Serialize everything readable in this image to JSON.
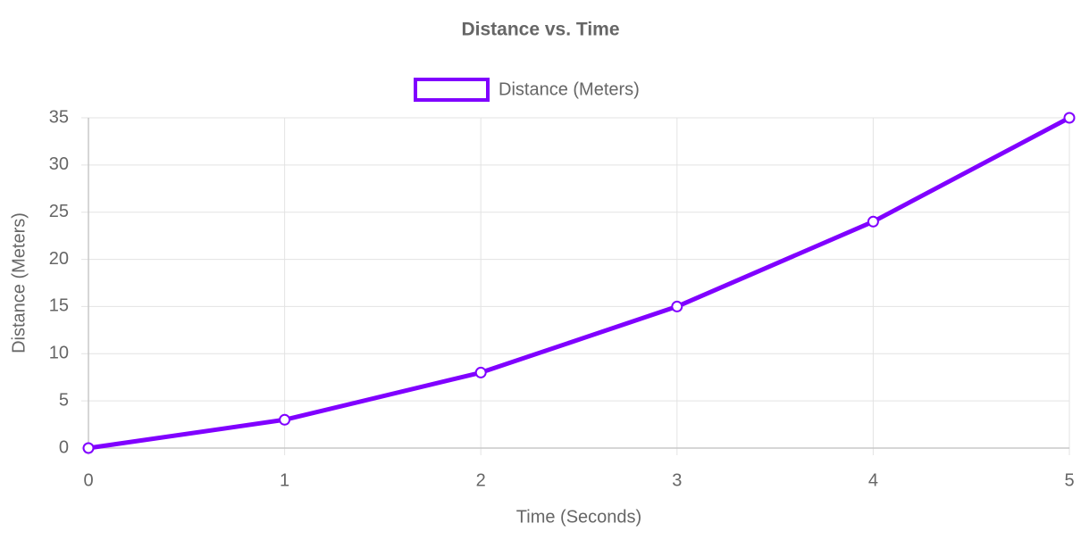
{
  "chart_data": {
    "type": "line",
    "title": "Distance vs. Time",
    "x_label": "Time (Seconds)",
    "y_label": "Distance (Meters)",
    "x": [
      0,
      1,
      2,
      3,
      4,
      5
    ],
    "series": [
      {
        "name": "Distance (Meters)",
        "color": "#8000ff",
        "values": [
          0,
          3,
          8,
          15,
          24,
          35
        ]
      }
    ],
    "xlim": [
      0,
      5
    ],
    "xticks": [
      0,
      1,
      2,
      3,
      4,
      5
    ],
    "ylim": [
      0,
      35
    ],
    "yticks": [
      0,
      5,
      10,
      15,
      20,
      25,
      30,
      35
    ],
    "grid": true,
    "legend": "top"
  }
}
